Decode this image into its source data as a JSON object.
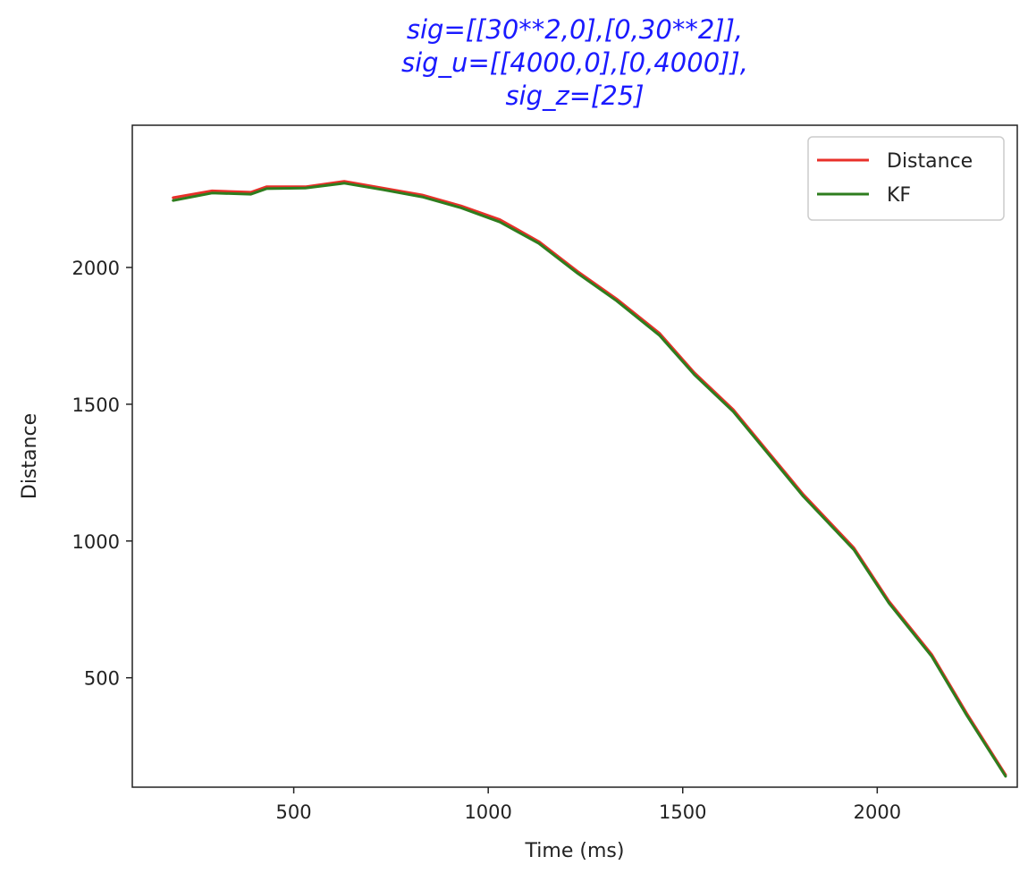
{
  "chart_data": {
    "type": "line",
    "title_lines": [
      "sig=[[30**2,0],[0,30**2]],",
      "sig_u=[[4000,0],[0,4000]],",
      "sig_z=[25]"
    ],
    "title_color": "#1a1aff",
    "xlabel": "Time (ms)",
    "ylabel": "Distance",
    "xlim": [
      85,
      2360
    ],
    "ylim": [
      100,
      2520
    ],
    "xticks": [
      500,
      1000,
      1500,
      2000
    ],
    "yticks": [
      500,
      1000,
      1500,
      2000
    ],
    "grid": false,
    "legend_position": "top-right",
    "series": [
      {
        "name": "Distance",
        "color": "#e8302a",
        "x": [
          190,
          290,
          390,
          430,
          530,
          630,
          730,
          830,
          930,
          1030,
          1130,
          1230,
          1330,
          1440,
          1530,
          1630,
          1720,
          1810,
          1940,
          2030,
          2140,
          2230,
          2330
        ],
        "y": [
          2255,
          2280,
          2275,
          2295,
          2295,
          2315,
          2290,
          2265,
          2225,
          2175,
          2095,
          1985,
          1885,
          1760,
          1615,
          1480,
          1325,
          1170,
          975,
          780,
          585,
          370,
          145
        ]
      },
      {
        "name": "KF",
        "color": "#2e7d1e",
        "x": [
          190,
          290,
          390,
          430,
          530,
          630,
          730,
          830,
          930,
          1030,
          1130,
          1230,
          1330,
          1440,
          1530,
          1630,
          1720,
          1810,
          1940,
          2030,
          2140,
          2230,
          2330
        ],
        "y": [
          2245,
          2272,
          2268,
          2288,
          2290,
          2308,
          2284,
          2258,
          2218,
          2166,
          2088,
          1978,
          1878,
          1752,
          1608,
          1473,
          1318,
          1163,
          968,
          773,
          578,
          363,
          140
        ]
      }
    ]
  }
}
